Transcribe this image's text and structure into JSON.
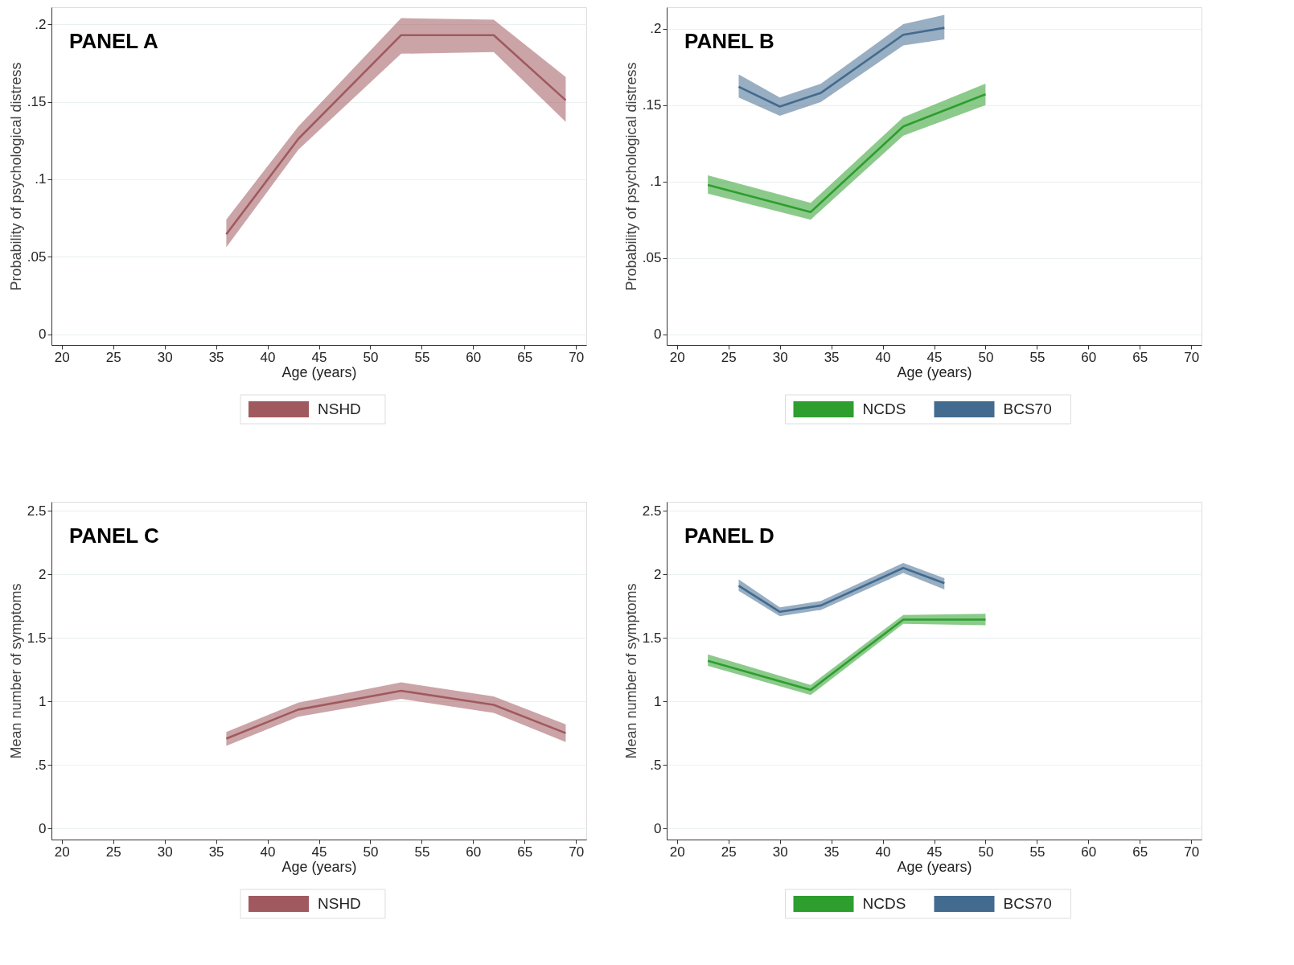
{
  "chart_data": [
    {
      "type": "line",
      "title": "PANEL A",
      "xlabel": "Age (years)",
      "ylabel": "Probability of psychological distress",
      "xlim": [
        19,
        71
      ],
      "xticks": [
        20,
        25,
        30,
        35,
        40,
        45,
        50,
        55,
        60,
        65,
        70
      ],
      "ylim": [
        -0.007,
        0.211
      ],
      "yticks": [
        {
          "value": 0,
          "label": "0"
        },
        {
          "value": 0.05,
          "label": ".05"
        },
        {
          "value": 0.1,
          "label": ".1"
        },
        {
          "value": 0.15,
          "label": ".15"
        },
        {
          "value": 0.2,
          "label": ".2"
        }
      ],
      "grid": "y",
      "legend": "bottom",
      "series": [
        {
          "name": "NSHD",
          "color": "#a05a5f",
          "x": [
            36,
            43,
            53,
            62,
            69
          ],
          "values": [
            0.0645,
            0.126,
            0.193,
            0.193,
            0.151
          ],
          "lower": [
            0.056,
            0.119,
            0.181,
            0.182,
            0.137
          ],
          "upper": [
            0.074,
            0.134,
            0.204,
            0.203,
            0.166
          ]
        }
      ]
    },
    {
      "type": "line",
      "title": "PANEL B",
      "xlabel": "Age (years)",
      "ylabel": "Probability of psychological distress",
      "xlim": [
        19,
        71
      ],
      "xticks": [
        20,
        25,
        30,
        35,
        40,
        45,
        50,
        55,
        60,
        65,
        70
      ],
      "ylim": [
        -0.007,
        0.214
      ],
      "yticks": [
        {
          "value": 0,
          "label": "0"
        },
        {
          "value": 0.05,
          "label": ".05"
        },
        {
          "value": 0.1,
          "label": ".1"
        },
        {
          "value": 0.15,
          "label": ".15"
        },
        {
          "value": 0.2,
          "label": ".2"
        }
      ],
      "grid": "y",
      "legend": "bottom",
      "series": [
        {
          "name": "NCDS",
          "color": "#2e9e2e",
          "x": [
            23,
            33,
            42,
            50
          ],
          "values": [
            0.0977,
            0.08,
            0.136,
            0.157
          ],
          "lower": [
            0.092,
            0.075,
            0.13,
            0.15
          ],
          "upper": [
            0.104,
            0.086,
            0.142,
            0.164
          ]
        },
        {
          "name": "BCS70",
          "color": "#436b8f",
          "x": [
            26,
            30,
            34,
            42,
            46
          ],
          "values": [
            0.162,
            0.149,
            0.158,
            0.196,
            0.2005
          ],
          "lower": [
            0.155,
            0.143,
            0.152,
            0.189,
            0.193
          ],
          "upper": [
            0.17,
            0.155,
            0.164,
            0.203,
            0.209
          ]
        }
      ]
    },
    {
      "type": "line",
      "title": "PANEL C",
      "xlabel": "Age (years)",
      "ylabel": "Mean number of symptoms",
      "xlim": [
        19,
        71
      ],
      "xticks": [
        20,
        25,
        30,
        35,
        40,
        45,
        50,
        55,
        60,
        65,
        70
      ],
      "ylim": [
        -0.086,
        2.57
      ],
      "yticks": [
        {
          "value": 0,
          "label": "0"
        },
        {
          "value": 0.5,
          "label": ".5"
        },
        {
          "value": 1,
          "label": "1"
        },
        {
          "value": 1.5,
          "label": "1.5"
        },
        {
          "value": 2,
          "label": "2"
        },
        {
          "value": 2.5,
          "label": "2.5"
        }
      ],
      "grid": "y",
      "legend": "bottom",
      "series": [
        {
          "name": "NSHD",
          "color": "#a05a5f",
          "x": [
            36,
            43,
            53,
            62,
            69
          ],
          "values": [
            0.708,
            0.936,
            1.084,
            0.973,
            0.751
          ],
          "lower": [
            0.65,
            0.88,
            1.02,
            0.91,
            0.68
          ],
          "upper": [
            0.76,
            0.99,
            1.15,
            1.04,
            0.82
          ]
        }
      ]
    },
    {
      "type": "line",
      "title": "PANEL D",
      "xlabel": "Age (years)",
      "ylabel": "Mean number of symptoms",
      "xlim": [
        19,
        71
      ],
      "xticks": [
        20,
        25,
        30,
        35,
        40,
        45,
        50,
        55,
        60,
        65,
        70
      ],
      "ylim": [
        -0.086,
        2.57
      ],
      "yticks": [
        {
          "value": 0,
          "label": "0"
        },
        {
          "value": 0.5,
          "label": ".5"
        },
        {
          "value": 1,
          "label": "1"
        },
        {
          "value": 1.5,
          "label": "1.5"
        },
        {
          "value": 2,
          "label": "2"
        },
        {
          "value": 2.5,
          "label": "2.5"
        }
      ],
      "grid": "y",
      "legend": "bottom",
      "series": [
        {
          "name": "NCDS",
          "color": "#2e9e2e",
          "x": [
            23,
            33,
            42,
            50
          ],
          "values": [
            1.32,
            1.09,
            1.644,
            1.644
          ],
          "lower": [
            1.28,
            1.05,
            1.61,
            1.6
          ],
          "upper": [
            1.37,
            1.13,
            1.68,
            1.69
          ]
        },
        {
          "name": "BCS70",
          "color": "#436b8f",
          "x": [
            26,
            30,
            34,
            42,
            46
          ],
          "values": [
            1.91,
            1.705,
            1.755,
            2.05,
            1.93
          ],
          "lower": [
            1.87,
            1.67,
            1.72,
            2.01,
            1.88
          ],
          "upper": [
            1.96,
            1.74,
            1.79,
            2.09,
            1.97
          ]
        }
      ]
    }
  ]
}
